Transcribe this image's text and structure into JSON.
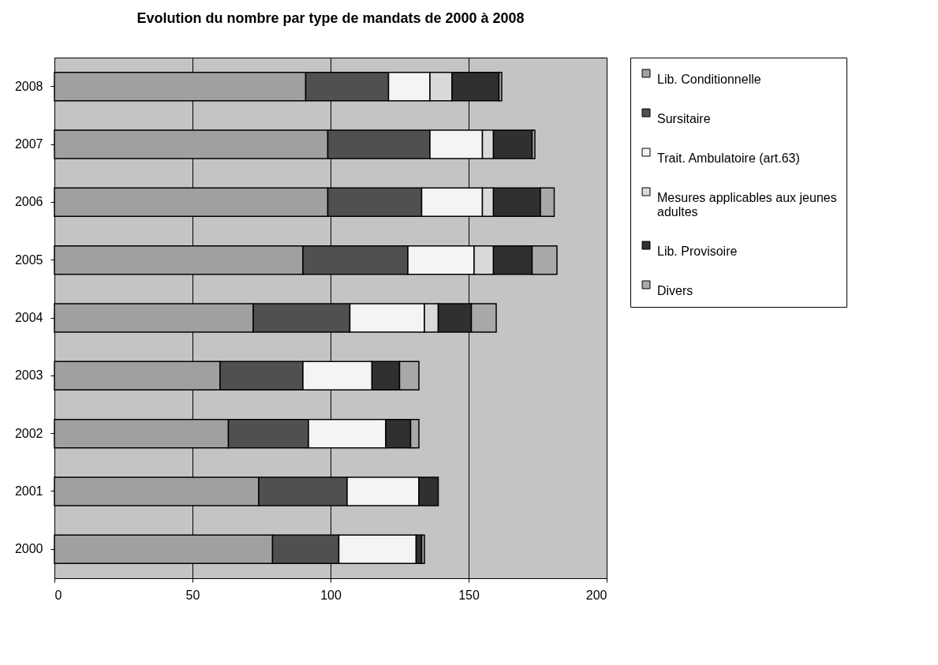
{
  "chart_data": {
    "type": "bar",
    "orientation": "horizontal",
    "stacked": true,
    "title": "Evolution du nombre par type de mandats de 2000 à 2008",
    "categories": [
      "2008",
      "2007",
      "2006",
      "2005",
      "2004",
      "2003",
      "2002",
      "2001",
      "2000"
    ],
    "series": [
      {
        "name": "Lib. Conditionnelle",
        "color": "#a0a0a0",
        "values": [
          91,
          99,
          99,
          90,
          72,
          60,
          63,
          74,
          79
        ]
      },
      {
        "name": "Sursitaire",
        "color": "#505050",
        "values": [
          30,
          37,
          34,
          38,
          35,
          30,
          29,
          32,
          24
        ]
      },
      {
        "name": "Trait. Ambulatoire (art.63)",
        "color": "#f4f4f4",
        "values": [
          15,
          19,
          22,
          24,
          27,
          25,
          28,
          26,
          28
        ]
      },
      {
        "name": "Mesures applicables aux jeunes adultes",
        "color": "#dadada",
        "values": [
          8,
          4,
          4,
          7,
          5,
          null,
          null,
          null,
          null
        ]
      },
      {
        "name": "Lib. Provisoire",
        "color": "#303030",
        "values": [
          17,
          14,
          17,
          14,
          12,
          10,
          9,
          7,
          2
        ]
      },
      {
        "name": "Divers",
        "color": "#a8a8a8",
        "values": [
          1,
          1,
          5,
          9,
          9,
          7,
          3,
          null,
          1
        ]
      }
    ],
    "xlim": [
      0,
      200
    ],
    "xticks": [
      0,
      50,
      100,
      150,
      200
    ],
    "grid": "x",
    "legend": "right"
  }
}
